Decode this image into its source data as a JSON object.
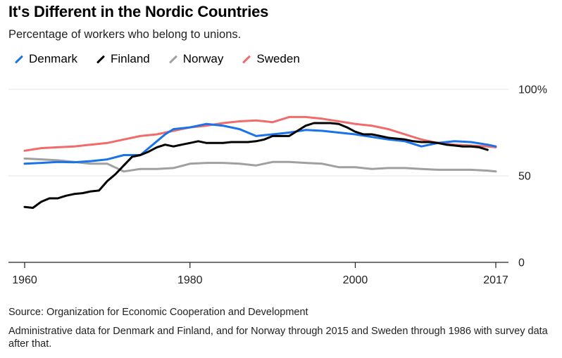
{
  "header": {
    "title": "It's Different in the Nordic Countries",
    "subtitle": "Percentage of workers who belong to unions."
  },
  "footer": {
    "source": "Source: Organization for Economic Cooperation and Development",
    "note": "Administrative data for Denmark and Finland, and for Norway through 2015 and Sweden through 1986 with survey data after that."
  },
  "chart_data": {
    "type": "line",
    "title": "It's Different in the Nordic Countries",
    "subtitle": "Percentage of workers who belong to unions.",
    "xlabel": "",
    "ylabel": "",
    "xlim": [
      1960,
      2017
    ],
    "ylim": [
      0,
      100
    ],
    "x_ticks": [
      1960,
      1980,
      2000,
      2017
    ],
    "x_tick_labels": [
      "1960",
      "1980",
      "2000",
      "2017"
    ],
    "y_ticks": [
      0,
      50,
      100
    ],
    "y_tick_labels": [
      "0",
      "50",
      "100%"
    ],
    "grid": true,
    "legend_position": "top-left",
    "series": [
      {
        "name": "Denmark",
        "color": "#1a73e8",
        "x": [
          1960,
          1962,
          1964,
          1966,
          1968,
          1970,
          1972,
          1974,
          1976,
          1977,
          1978,
          1980,
          1982,
          1984,
          1986,
          1988,
          1990,
          1992,
          1994,
          1996,
          1998,
          2000,
          2002,
          2004,
          2006,
          2008,
          2010,
          2012,
          2014,
          2016,
          2017
        ],
        "y": [
          57,
          57.5,
          58,
          57.8,
          58.5,
          59.5,
          62,
          62,
          70,
          74,
          77,
          78,
          80,
          79,
          77,
          73,
          74,
          75,
          76.5,
          76,
          75,
          74,
          72.5,
          71,
          70,
          67,
          69,
          70,
          69.5,
          68,
          67
        ]
      },
      {
        "name": "Finland",
        "color": "#000000",
        "x": [
          1960,
          1961,
          1962,
          1963,
          1964,
          1965,
          1966,
          1967,
          1968,
          1969,
          1970,
          1971,
          1972,
          1973,
          1974,
          1975,
          1976,
          1977,
          1978,
          1979,
          1980,
          1981,
          1982,
          1983,
          1984,
          1985,
          1986,
          1987,
          1988,
          1989,
          1990,
          1991,
          1992,
          1993,
          1994,
          1995,
          1996,
          1997,
          1998,
          1999,
          2000,
          2001,
          2002,
          2003,
          2004,
          2005,
          2006,
          2007,
          2008,
          2009,
          2010,
          2011,
          2012,
          2013,
          2014,
          2015,
          2016
        ],
        "y": [
          32,
          31.5,
          35,
          37,
          37,
          38.5,
          39.5,
          40,
          41,
          41.5,
          47,
          51,
          56,
          61,
          62,
          64,
          66.5,
          68,
          67,
          68,
          69,
          70,
          69,
          69,
          69,
          69.5,
          69.5,
          69.5,
          70,
          71,
          73,
          73,
          73,
          76,
          79,
          80.5,
          80.5,
          80.5,
          80,
          78,
          75.5,
          74,
          74,
          73,
          72,
          71.5,
          71,
          70,
          69.5,
          69.5,
          69,
          68,
          67.5,
          67,
          67,
          66.5,
          65
        ]
      },
      {
        "name": "Norway",
        "color": "#a0a0a0",
        "x": [
          1960,
          1962,
          1964,
          1966,
          1968,
          1970,
          1972,
          1974,
          1976,
          1978,
          1980,
          1982,
          1984,
          1986,
          1988,
          1990,
          1992,
          1994,
          1996,
          1998,
          2000,
          2002,
          2004,
          2006,
          2008,
          2010,
          2012,
          2014,
          2016,
          2017
        ],
        "y": [
          60,
          59.5,
          59,
          58,
          57,
          57,
          52.5,
          54,
          54,
          54.5,
          57,
          57.5,
          57.5,
          57,
          56,
          58,
          58,
          57.5,
          57,
          55,
          55,
          54,
          54.5,
          54.5,
          54,
          53.5,
          53.5,
          53.5,
          53,
          52.5
        ]
      },
      {
        "name": "Sweden",
        "color": "#f26b6b",
        "x": [
          1960,
          1962,
          1964,
          1966,
          1968,
          1970,
          1972,
          1974,
          1976,
          1978,
          1980,
          1982,
          1984,
          1986,
          1988,
          1990,
          1992,
          1994,
          1996,
          1998,
          2000,
          2002,
          2004,
          2006,
          2008,
          2010,
          2012,
          2014,
          2016,
          2017
        ],
        "y": [
          64.5,
          66,
          66.5,
          67,
          68,
          69,
          71,
          73,
          74,
          76,
          78,
          79,
          80.5,
          81.5,
          82,
          81,
          84,
          84,
          83,
          81.5,
          80,
          79,
          77,
          74,
          71,
          69,
          68,
          67.5,
          67,
          66.5
        ]
      }
    ]
  }
}
